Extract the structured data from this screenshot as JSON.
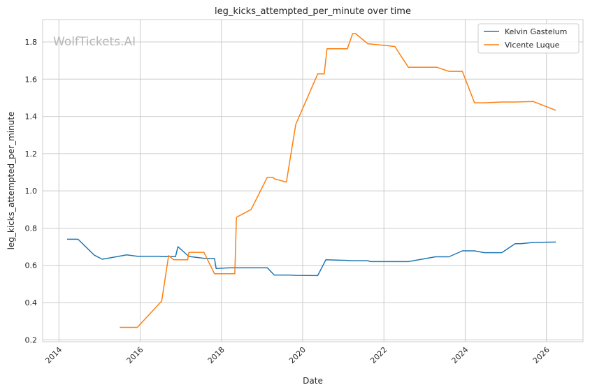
{
  "chart_data": {
    "type": "line",
    "title": "leg_kicks_attempted_per_minute over time",
    "xlabel": "Date",
    "ylabel": "leg_kicks_attempted_per_minute",
    "watermark": "WolfTickets.AI",
    "xlim": [
      2013.6,
      2026.9
    ],
    "ylim": [
      0.19,
      1.92
    ],
    "x_ticks": [
      2014,
      2016,
      2018,
      2020,
      2022,
      2024,
      2026
    ],
    "x_tick_labels": [
      "2014",
      "2016",
      "2018",
      "2020",
      "2022",
      "2024",
      "2026"
    ],
    "y_ticks": [
      0.2,
      0.4,
      0.6,
      0.8,
      1.0,
      1.2,
      1.4,
      1.6,
      1.8
    ],
    "y_tick_labels": [
      "0.2",
      "0.4",
      "0.6",
      "0.8",
      "1.0",
      "1.2",
      "1.4",
      "1.6",
      "1.8"
    ],
    "grid": true,
    "legend_position": "top-right",
    "series": [
      {
        "name": "Kelvin Gastelum",
        "color": "#1f77b4",
        "x": [
          2014.2,
          2014.47,
          2014.87,
          2015.07,
          2015.67,
          2015.93,
          2016.47,
          2016.53,
          2016.87,
          2016.93,
          2017.2,
          2017.6,
          2017.83,
          2017.87,
          2018.2,
          2019.13,
          2019.3,
          2019.67,
          2019.83,
          2020.37,
          2020.57,
          2021.13,
          2021.2,
          2021.6,
          2021.67,
          2022.6,
          2023.27,
          2023.6,
          2023.93,
          2024.23,
          2024.47,
          2024.9,
          2025.23,
          2025.37,
          2025.67,
          2026.23
        ],
        "y": [
          0.74,
          0.74,
          0.655,
          0.633,
          0.656,
          0.649,
          0.649,
          0.647,
          0.647,
          0.7,
          0.648,
          0.637,
          0.637,
          0.583,
          0.587,
          0.587,
          0.548,
          0.548,
          0.546,
          0.545,
          0.63,
          0.626,
          0.625,
          0.625,
          0.62,
          0.62,
          0.646,
          0.646,
          0.678,
          0.678,
          0.668,
          0.668,
          0.716,
          0.716,
          0.723,
          0.725
        ]
      },
      {
        "name": "Vicente Luque",
        "color": "#ff7f0e",
        "x": [
          2015.5,
          2015.93,
          2016.53,
          2016.7,
          2016.83,
          2017.17,
          2017.2,
          2017.57,
          2017.83,
          2018.33,
          2018.37,
          2018.73,
          2019.13,
          2019.27,
          2019.3,
          2019.6,
          2019.83,
          2020.37,
          2020.53,
          2020.6,
          2021.1,
          2021.23,
          2021.3,
          2021.6,
          2022.07,
          2022.27,
          2022.6,
          2023.3,
          2023.6,
          2023.93,
          2024.23,
          2024.47,
          2024.9,
          2025.23,
          2025.67,
          2026.23
        ],
        "y": [
          0.267,
          0.267,
          0.408,
          0.652,
          0.63,
          0.63,
          0.67,
          0.67,
          0.555,
          0.555,
          0.858,
          0.9,
          1.073,
          1.073,
          1.065,
          1.047,
          1.357,
          1.628,
          1.628,
          1.763,
          1.763,
          1.845,
          1.845,
          1.79,
          1.78,
          1.775,
          1.664,
          1.664,
          1.642,
          1.642,
          1.473,
          1.473,
          1.477,
          1.477,
          1.48,
          1.433
        ]
      }
    ]
  }
}
